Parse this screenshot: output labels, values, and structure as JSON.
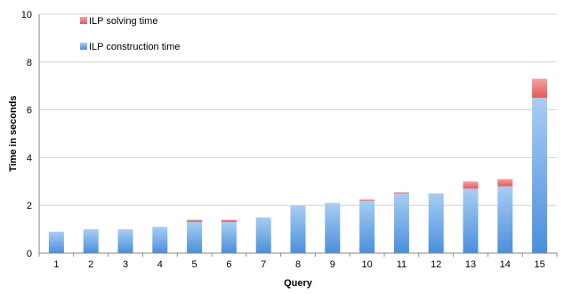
{
  "chart_data": {
    "type": "bar",
    "stacked": true,
    "categories": [
      "1",
      "2",
      "3",
      "4",
      "5",
      "6",
      "7",
      "8",
      "9",
      "10",
      "11",
      "12",
      "13",
      "14",
      "15"
    ],
    "series": [
      {
        "name": "ILP construction time",
        "color": "#5b9be0",
        "values": [
          0.9,
          1.0,
          1.0,
          1.1,
          1.3,
          1.3,
          1.5,
          2.0,
          2.1,
          2.2,
          2.5,
          2.5,
          2.7,
          2.8,
          6.5
        ]
      },
      {
        "name": "ILP solving time",
        "color": "#e86565",
        "values": [
          0.0,
          0.0,
          0.0,
          0.0,
          0.1,
          0.1,
          0.0,
          0.0,
          0.0,
          0.05,
          0.05,
          0.0,
          0.3,
          0.3,
          0.8
        ]
      }
    ],
    "xlabel": "Query",
    "ylabel": "Time in seconds",
    "ylim": [
      0,
      10
    ],
    "yticks": [
      "0",
      "2",
      "4",
      "6",
      "8",
      "10"
    ],
    "grid": true,
    "legend_position": "top-left"
  }
}
